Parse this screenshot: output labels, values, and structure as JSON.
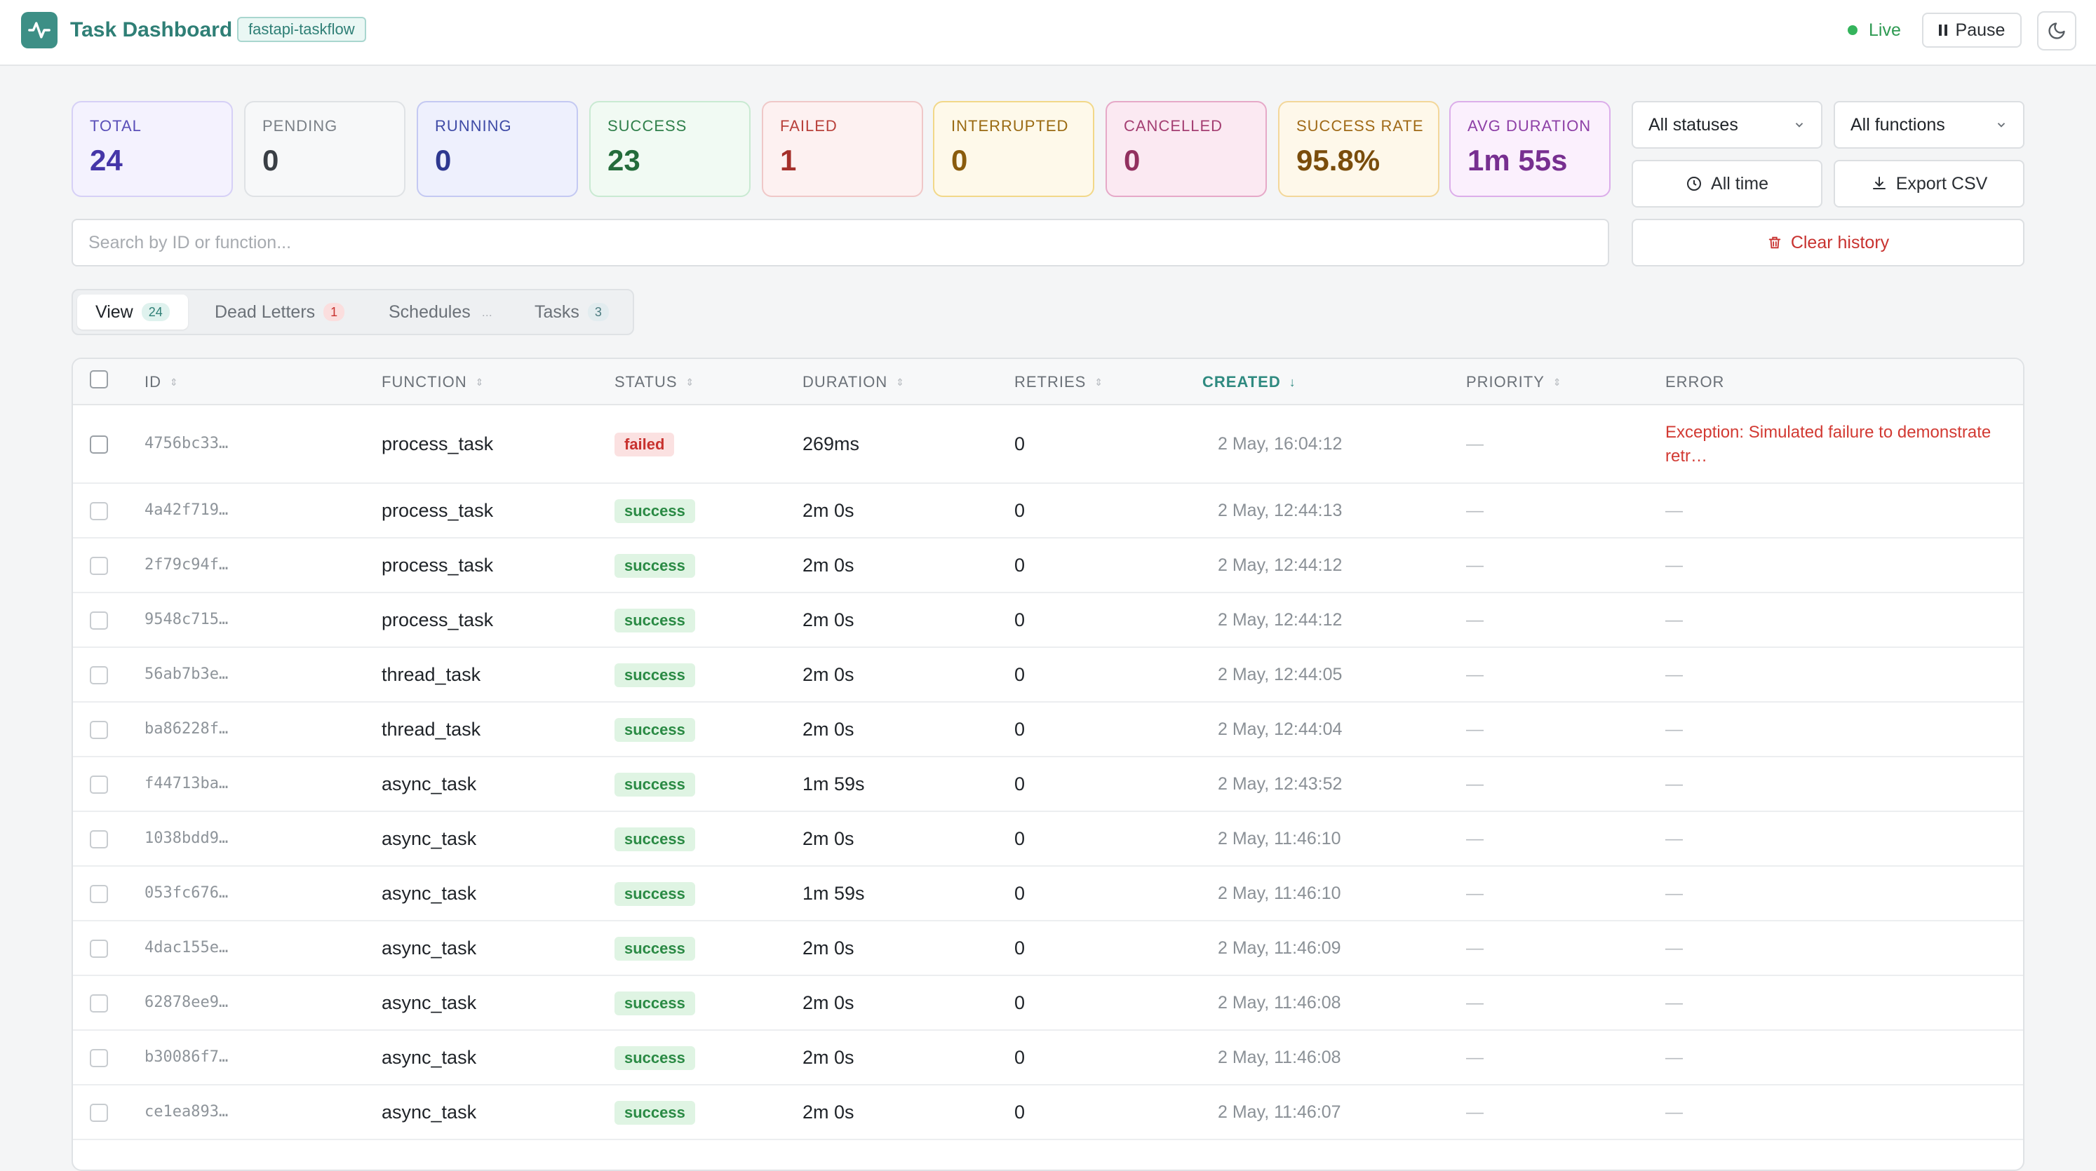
{
  "header": {
    "title": "Task Dashboard",
    "project": "fastapi-taskflow",
    "live_label": "Live",
    "pause_label": "Pause"
  },
  "stats": [
    {
      "label": "TOTAL",
      "value": "24"
    },
    {
      "label": "PENDING",
      "value": "0"
    },
    {
      "label": "RUNNING",
      "value": "0"
    },
    {
      "label": "SUCCESS",
      "value": "23"
    },
    {
      "label": "FAILED",
      "value": "1"
    },
    {
      "label": "INTERRUPTED",
      "value": "0"
    },
    {
      "label": "CANCELLED",
      "value": "0"
    },
    {
      "label": "SUCCESS RATE",
      "value": "95.8%"
    },
    {
      "label": "AVG DURATION",
      "value": "1m 55s"
    }
  ],
  "filters": {
    "status_select": "All statuses",
    "function_select": "All functions",
    "time_button": "All time",
    "export_button": "Export CSV",
    "clear_button": "Clear history",
    "search_placeholder": "Search by ID or function..."
  },
  "tabs": [
    {
      "label": "View",
      "count": "24"
    },
    {
      "label": "Dead Letters",
      "count": "1"
    },
    {
      "label": "Schedules",
      "count": "..."
    },
    {
      "label": "Tasks",
      "count": "3"
    }
  ],
  "table": {
    "columns": [
      "ID",
      "FUNCTION",
      "STATUS",
      "DURATION",
      "RETRIES",
      "CREATED",
      "PRIORITY",
      "ERROR"
    ],
    "rows": [
      {
        "id": "4756bc33…",
        "function": "process_task",
        "status": "failed",
        "duration": "269ms",
        "retries": "0",
        "created": "2 May, 16:04:12",
        "priority": "—",
        "error": "Exception: Simulated failure to demonstrate retr…"
      },
      {
        "id": "4a42f719…",
        "function": "process_task",
        "status": "success",
        "duration": "2m 0s",
        "retries": "0",
        "created": "2 May, 12:44:13",
        "priority": "—",
        "error": "—"
      },
      {
        "id": "2f79c94f…",
        "function": "process_task",
        "status": "success",
        "duration": "2m 0s",
        "retries": "0",
        "created": "2 May, 12:44:12",
        "priority": "—",
        "error": "—"
      },
      {
        "id": "9548c715…",
        "function": "process_task",
        "status": "success",
        "duration": "2m 0s",
        "retries": "0",
        "created": "2 May, 12:44:12",
        "priority": "—",
        "error": "—"
      },
      {
        "id": "56ab7b3e…",
        "function": "thread_task",
        "status": "success",
        "duration": "2m 0s",
        "retries": "0",
        "created": "2 May, 12:44:05",
        "priority": "—",
        "error": "—"
      },
      {
        "id": "ba86228f…",
        "function": "thread_task",
        "status": "success",
        "duration": "2m 0s",
        "retries": "0",
        "created": "2 May, 12:44:04",
        "priority": "—",
        "error": "—"
      },
      {
        "id": "f44713ba…",
        "function": "async_task",
        "status": "success",
        "duration": "1m 59s",
        "retries": "0",
        "created": "2 May, 12:43:52",
        "priority": "—",
        "error": "—"
      },
      {
        "id": "1038bdd9…",
        "function": "async_task",
        "status": "success",
        "duration": "2m 0s",
        "retries": "0",
        "created": "2 May, 11:46:10",
        "priority": "—",
        "error": "—"
      },
      {
        "id": "053fc676…",
        "function": "async_task",
        "status": "success",
        "duration": "1m 59s",
        "retries": "0",
        "created": "2 May, 11:46:10",
        "priority": "—",
        "error": "—"
      },
      {
        "id": "4dac155e…",
        "function": "async_task",
        "status": "success",
        "duration": "2m 0s",
        "retries": "0",
        "created": "2 May, 11:46:09",
        "priority": "—",
        "error": "—"
      },
      {
        "id": "62878ee9…",
        "function": "async_task",
        "status": "success",
        "duration": "2m 0s",
        "retries": "0",
        "created": "2 May, 11:46:08",
        "priority": "—",
        "error": "—"
      },
      {
        "id": "b30086f7…",
        "function": "async_task",
        "status": "success",
        "duration": "2m 0s",
        "retries": "0",
        "created": "2 May, 11:46:08",
        "priority": "—",
        "error": "—"
      },
      {
        "id": "ce1ea893…",
        "function": "async_task",
        "status": "success",
        "duration": "2m 0s",
        "retries": "0",
        "created": "2 May, 11:46:07",
        "priority": "—",
        "error": "—"
      }
    ]
  },
  "colors": {
    "brand": "#3d8f86",
    "failed": "#c8322f",
    "success": "#2a8a44",
    "live": "#34b45c"
  }
}
